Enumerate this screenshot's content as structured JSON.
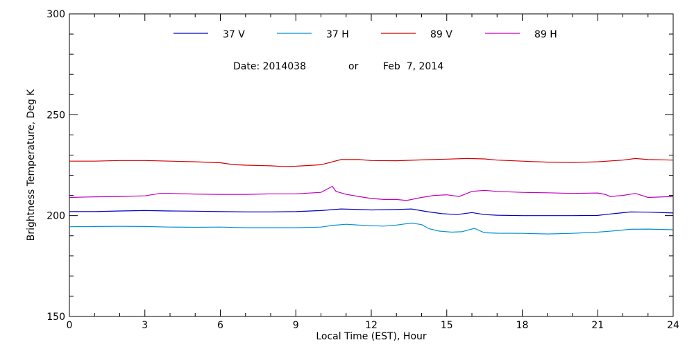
{
  "chart_data": {
    "type": "line",
    "xlabel": "Local Time (EST), Hour",
    "ylabel": "Brightness Temperature, Deg K",
    "xlim": [
      0,
      24
    ],
    "ylim": [
      150,
      300
    ],
    "x_ticks": [
      0,
      3,
      6,
      9,
      12,
      15,
      18,
      21,
      24
    ],
    "x_tick_labels": [
      "0",
      "3",
      "6",
      "9",
      "12",
      "15",
      "18",
      "21",
      "24"
    ],
    "y_ticks": [
      150,
      200,
      250,
      300
    ],
    "y_tick_labels": [
      "150",
      "200",
      "250",
      "300"
    ],
    "grid": false,
    "legend_position": "top",
    "annotation": {
      "date_label": "Date: 2014038",
      "or_label": "or",
      "date_text": "Feb  7, 2014"
    },
    "series": [
      {
        "name": "37 V",
        "color": "#0000c0",
        "points": [
          [
            0,
            202
          ],
          [
            1,
            202
          ],
          [
            2,
            202.3
          ],
          [
            3,
            202.5
          ],
          [
            4,
            202.3
          ],
          [
            5,
            202.2
          ],
          [
            6,
            202
          ],
          [
            7,
            201.8
          ],
          [
            8,
            201.8
          ],
          [
            9,
            202
          ],
          [
            10,
            202.5
          ],
          [
            10.8,
            203.3
          ],
          [
            11.5,
            203
          ],
          [
            12,
            202.8
          ],
          [
            13,
            203
          ],
          [
            13.6,
            203.3
          ],
          [
            14.2,
            202
          ],
          [
            14.8,
            201
          ],
          [
            15.4,
            200.5
          ],
          [
            16,
            201.5
          ],
          [
            16.5,
            200.5
          ],
          [
            17,
            200.2
          ],
          [
            18,
            200
          ],
          [
            19,
            200
          ],
          [
            20,
            200
          ],
          [
            21,
            200.1
          ],
          [
            21.5,
            200.8
          ],
          [
            22.3,
            201.8
          ],
          [
            23,
            201.7
          ],
          [
            24,
            201.3
          ]
        ]
      },
      {
        "name": "37 H",
        "color": "#0090d0",
        "points": [
          [
            0,
            194.5
          ],
          [
            1,
            194.6
          ],
          [
            2,
            194.7
          ],
          [
            3,
            194.6
          ],
          [
            4,
            194.3
          ],
          [
            5,
            194.2
          ],
          [
            6,
            194.3
          ],
          [
            7,
            194
          ],
          [
            8,
            194
          ],
          [
            9,
            194
          ],
          [
            10,
            194.3
          ],
          [
            10.5,
            195.2
          ],
          [
            11,
            195.7
          ],
          [
            11.5,
            195.3
          ],
          [
            12,
            195
          ],
          [
            12.5,
            194.8
          ],
          [
            13,
            195.3
          ],
          [
            13.6,
            196.3
          ],
          [
            14,
            195.5
          ],
          [
            14.3,
            193.5
          ],
          [
            14.7,
            192.3
          ],
          [
            15.2,
            191.8
          ],
          [
            15.6,
            192
          ],
          [
            16.1,
            193.7
          ],
          [
            16.5,
            191.5
          ],
          [
            17,
            191.3
          ],
          [
            18,
            191.2
          ],
          [
            19,
            190.9
          ],
          [
            20,
            191.2
          ],
          [
            21,
            191.8
          ],
          [
            21.6,
            192.4
          ],
          [
            22.3,
            193.2
          ],
          [
            23,
            193.3
          ],
          [
            24,
            193
          ]
        ]
      },
      {
        "name": "89 V",
        "color": "#d00000",
        "points": [
          [
            0,
            227
          ],
          [
            1,
            227
          ],
          [
            2,
            227.3
          ],
          [
            3,
            227.3
          ],
          [
            4,
            227
          ],
          [
            5,
            226.7
          ],
          [
            6,
            226.2
          ],
          [
            6.5,
            225.3
          ],
          [
            7,
            225
          ],
          [
            8,
            224.7
          ],
          [
            8.5,
            224.3
          ],
          [
            9,
            224.5
          ],
          [
            10,
            225.2
          ],
          [
            10.8,
            227.8
          ],
          [
            11.5,
            227.8
          ],
          [
            12,
            227.3
          ],
          [
            13,
            227.2
          ],
          [
            14,
            227.6
          ],
          [
            15,
            228
          ],
          [
            15.8,
            228.3
          ],
          [
            16.5,
            228.1
          ],
          [
            17,
            227.5
          ],
          [
            18,
            227
          ],
          [
            19,
            226.5
          ],
          [
            20,
            226.3
          ],
          [
            21,
            226.7
          ],
          [
            22,
            227.5
          ],
          [
            22.5,
            228.3
          ],
          [
            23,
            227.8
          ],
          [
            24,
            227.5
          ]
        ]
      },
      {
        "name": "89 H",
        "color": "#c000c0",
        "points": [
          [
            0,
            209
          ],
          [
            1,
            209.3
          ],
          [
            2,
            209.5
          ],
          [
            3,
            209.8
          ],
          [
            3.6,
            211
          ],
          [
            4,
            211
          ],
          [
            5,
            210.7
          ],
          [
            6,
            210.5
          ],
          [
            7,
            210.5
          ],
          [
            8,
            210.8
          ],
          [
            9,
            210.8
          ],
          [
            10,
            211.5
          ],
          [
            10.3,
            213.5
          ],
          [
            10.45,
            214.5
          ],
          [
            10.6,
            212
          ],
          [
            11,
            210.5
          ],
          [
            11.5,
            209.5
          ],
          [
            12,
            208.5
          ],
          [
            12.5,
            208
          ],
          [
            13,
            208
          ],
          [
            13.4,
            207.5
          ],
          [
            14,
            209
          ],
          [
            14.5,
            210
          ],
          [
            15,
            210.3
          ],
          [
            15.5,
            209.5
          ],
          [
            16,
            212
          ],
          [
            16.5,
            212.5
          ],
          [
            17,
            212
          ],
          [
            18,
            211.5
          ],
          [
            19,
            211.3
          ],
          [
            20,
            211
          ],
          [
            21,
            211.2
          ],
          [
            21.3,
            210.5
          ],
          [
            21.5,
            209.5
          ],
          [
            22,
            210
          ],
          [
            22.5,
            211
          ],
          [
            23,
            209
          ],
          [
            24,
            209.5
          ]
        ]
      }
    ]
  }
}
